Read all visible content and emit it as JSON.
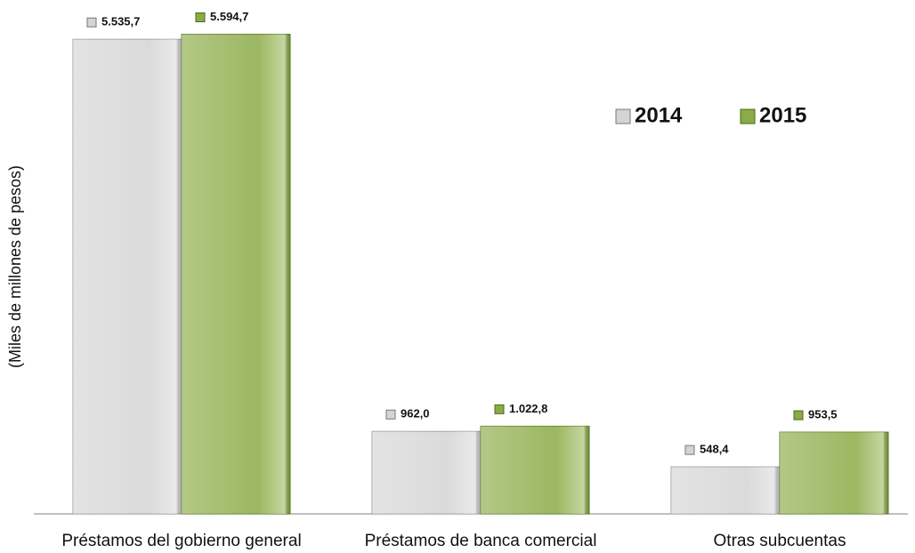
{
  "chart_data": {
    "type": "bar",
    "y_label": "(Miles de millones de pesos)",
    "categories": [
      "Préstamos del gobierno general",
      "Préstamos de banca comercial",
      "Otras subcuentas"
    ],
    "series": [
      {
        "name": "2014",
        "color": "#d4d4d4",
        "values": [
          5535.7,
          962.0,
          548.4
        ],
        "value_labels": [
          "5.535,7",
          "962,0",
          "548,4"
        ]
      },
      {
        "name": "2015",
        "color": "#8aab45",
        "values": [
          5594.7,
          1022.8,
          953.5
        ],
        "value_labels": [
          "5.594,7",
          "1.022,8",
          "953,5"
        ]
      }
    ],
    "ylim": [
      0,
      5600
    ]
  }
}
